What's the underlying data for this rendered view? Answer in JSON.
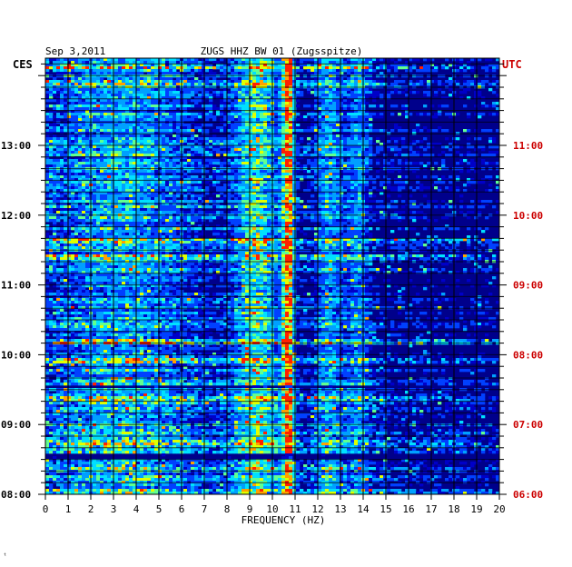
{
  "header": {
    "date": "Sep 3,2011",
    "station": "ZUGS HHZ BW 01 (Zugsspitze)",
    "left_tz": "CES",
    "right_tz": "UTC"
  },
  "colors": {
    "background": "#ffffff",
    "plot_bg": "#00008b",
    "grid": "#000000",
    "text": "#000000",
    "utc_text": "#cc0000",
    "colormap": [
      "#00007a",
      "#0000c8",
      "#0040ff",
      "#00a0ff",
      "#00e0ff",
      "#60ff90",
      "#e0ff00",
      "#ffa000",
      "#ff2000"
    ]
  },
  "footer_mark": "ᵗ",
  "chart_data": {
    "type": "heatmap",
    "title": "ZUGS HHZ BW 01 (Zugsspitze)",
    "subtitle": "Sep 3,2011",
    "xlabel": "FREQUENCY (HZ)",
    "ylabel": "",
    "xlim": [
      0,
      20
    ],
    "x_ticks": [
      "0",
      "1",
      "2",
      "3",
      "4",
      "5",
      "6",
      "7",
      "8",
      "9",
      "10",
      "11",
      "12",
      "13",
      "14",
      "15",
      "16",
      "17",
      "18",
      "19",
      "20"
    ],
    "ylim_hours": [
      8,
      14.25
    ],
    "y_ticks_left": [
      "13:00",
      "12:00",
      "11:00",
      "10:00",
      "09:00",
      "08:00"
    ],
    "y_ticks_left_hours": [
      13,
      12,
      11,
      10,
      9,
      8
    ],
    "y_ticks_right": [
      "11:00",
      "10:00",
      "09:00",
      "08:00",
      "07:00",
      "06:00"
    ],
    "y_minor_step_minutes": 10,
    "grid": true,
    "features": [
      {
        "freq_center": 10.7,
        "width": 0.25,
        "strength": 0.85
      },
      {
        "freq_center": 9.3,
        "width": 0.9,
        "strength": 0.45
      },
      {
        "freq_center": 12.5,
        "width": 0.6,
        "strength": 0.3
      },
      {
        "freq_center": 13.8,
        "width": 0.5,
        "strength": 0.25
      },
      {
        "freq_center": 3.5,
        "width": 3.0,
        "strength": 0.25
      }
    ],
    "bright_rows_hours": [
      8.05,
      8.35,
      8.75,
      9.35,
      9.9,
      10.2,
      11.65,
      11.4,
      13.85,
      14.15
    ]
  }
}
